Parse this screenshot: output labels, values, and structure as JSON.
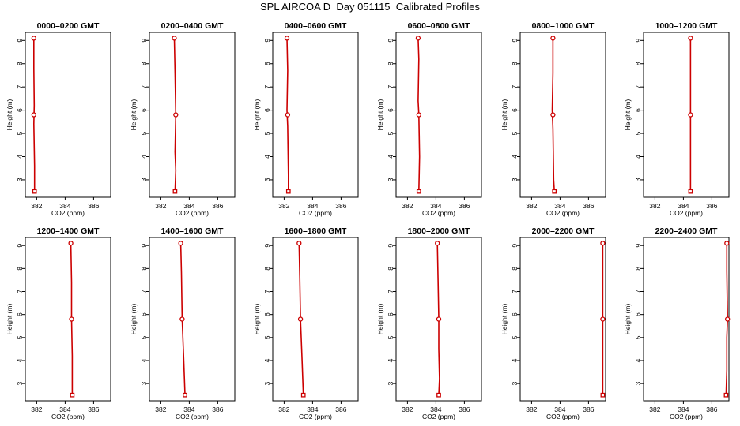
{
  "title": "SPL AIRCOA D  Day 051115  Calibrated Profiles",
  "series_color": "#cc0000",
  "chart_data": [
    {
      "type": "line",
      "title": "0000–0200 GMT",
      "xlabel": "CO2 (ppm)",
      "ylabel": "Height (m)",
      "xlim": [
        381.2,
        387.2
      ],
      "ylim": [
        2.25,
        9.35
      ],
      "xticks": [
        382,
        384,
        386
      ],
      "yticks": [
        3,
        4,
        5,
        6,
        7,
        8,
        9
      ],
      "grid": false,
      "x": [
        381.8,
        381.8,
        381.85
      ],
      "y": [
        9.1,
        5.8,
        2.5
      ],
      "trace": {
        "x": [
          381.8,
          381.8,
          381.83,
          381.8,
          381.85,
          381.85
        ],
        "y": [
          9.1,
          7.8,
          6.2,
          5.4,
          3.6,
          2.5
        ]
      }
    },
    {
      "type": "line",
      "title": "0200–0400 GMT",
      "xlabel": "CO2 (ppm)",
      "ylabel": "Height (m)",
      "xlim": [
        381.2,
        387.2
      ],
      "ylim": [
        2.25,
        9.35
      ],
      "xticks": [
        382,
        384,
        386
      ],
      "yticks": [
        3,
        4,
        5,
        6,
        7,
        8,
        9
      ],
      "grid": false,
      "x": [
        382.95,
        383.05,
        383.0
      ],
      "y": [
        9.1,
        5.8,
        2.5
      ],
      "trace": {
        "x": [
          382.95,
          383.0,
          383.05,
          383.0,
          383.05,
          383.0
        ],
        "y": [
          9.1,
          7.6,
          5.8,
          4.2,
          3.4,
          2.5
        ]
      }
    },
    {
      "type": "line",
      "title": "0400–0600 GMT",
      "xlabel": "CO2 (ppm)",
      "ylabel": "Height (m)",
      "xlim": [
        381.2,
        387.2
      ],
      "ylim": [
        2.25,
        9.35
      ],
      "xticks": [
        382,
        384,
        386
      ],
      "yticks": [
        3,
        4,
        5,
        6,
        7,
        8,
        9
      ],
      "grid": false,
      "x": [
        382.2,
        382.25,
        382.3
      ],
      "y": [
        9.1,
        5.8,
        2.5
      ],
      "trace": {
        "x": [
          382.2,
          382.25,
          382.2,
          382.25,
          382.3,
          382.3
        ],
        "y": [
          9.1,
          7.7,
          6.0,
          5.3,
          3.2,
          2.5
        ]
      }
    },
    {
      "type": "line",
      "title": "0600–0800 GMT",
      "xlabel": "CO2 (ppm)",
      "ylabel": "Height (m)",
      "xlim": [
        381.2,
        387.2
      ],
      "ylim": [
        2.25,
        9.35
      ],
      "xticks": [
        382,
        384,
        386
      ],
      "yticks": [
        3,
        4,
        5,
        6,
        7,
        8,
        9
      ],
      "grid": false,
      "x": [
        382.75,
        382.8,
        382.8
      ],
      "y": [
        9.1,
        5.8,
        2.5
      ],
      "trace": {
        "x": [
          382.75,
          382.8,
          382.75,
          382.8,
          382.85,
          382.8
        ],
        "y": [
          9.1,
          8.2,
          6.4,
          5.8,
          4.0,
          2.5
        ]
      }
    },
    {
      "type": "line",
      "title": "0800–1000 GMT",
      "xlabel": "CO2 (ppm)",
      "ylabel": "Height (m)",
      "xlim": [
        381.2,
        387.2
      ],
      "ylim": [
        2.25,
        9.35
      ],
      "xticks": [
        382,
        384,
        386
      ],
      "yticks": [
        3,
        4,
        5,
        6,
        7,
        8,
        9
      ],
      "grid": false,
      "x": [
        383.5,
        383.5,
        383.6
      ],
      "y": [
        9.1,
        5.8,
        2.5
      ],
      "trace": {
        "x": [
          383.5,
          383.5,
          383.45,
          383.5,
          383.55,
          383.6
        ],
        "y": [
          9.1,
          7.6,
          6.0,
          5.2,
          3.0,
          2.5
        ]
      }
    },
    {
      "type": "line",
      "title": "1000–1200 GMT",
      "xlabel": "CO2 (ppm)",
      "ylabel": "Height (m)",
      "xlim": [
        381.2,
        387.2
      ],
      "ylim": [
        2.25,
        9.35
      ],
      "xticks": [
        382,
        384,
        386
      ],
      "yticks": [
        3,
        4,
        5,
        6,
        7,
        8,
        9
      ],
      "grid": false,
      "x": [
        384.5,
        384.5,
        384.5
      ],
      "y": [
        9.1,
        5.8,
        2.5
      ],
      "trace": {
        "x": [
          384.5,
          384.5,
          384.5,
          384.5
        ],
        "y": [
          9.1,
          7.2,
          5.8,
          2.5
        ]
      }
    },
    {
      "type": "line",
      "title": "1200–1400 GMT",
      "xlabel": "CO2 (ppm)",
      "ylabel": "Height (m)",
      "xlim": [
        381.2,
        387.2
      ],
      "ylim": [
        2.25,
        9.35
      ],
      "xticks": [
        382,
        384,
        386
      ],
      "yticks": [
        3,
        4,
        5,
        6,
        7,
        8,
        9
      ],
      "grid": false,
      "x": [
        384.4,
        384.45,
        384.5
      ],
      "y": [
        9.1,
        5.8,
        2.5
      ],
      "trace": {
        "x": [
          384.4,
          384.45,
          384.45,
          384.5,
          384.5
        ],
        "y": [
          9.1,
          7.4,
          5.8,
          4.2,
          2.5
        ]
      }
    },
    {
      "type": "line",
      "title": "1400–1600 GMT",
      "xlabel": "CO2 (ppm)",
      "ylabel": "Height (m)",
      "xlim": [
        381.2,
        387.2
      ],
      "ylim": [
        2.25,
        9.35
      ],
      "xticks": [
        382,
        384,
        386
      ],
      "yticks": [
        3,
        4,
        5,
        6,
        7,
        8,
        9
      ],
      "grid": false,
      "x": [
        383.4,
        383.5,
        383.7
      ],
      "y": [
        9.1,
        5.8,
        2.5
      ],
      "trace": {
        "x": [
          383.4,
          383.45,
          383.5,
          383.6,
          383.7
        ],
        "y": [
          9.1,
          7.8,
          5.8,
          4.2,
          2.5
        ]
      }
    },
    {
      "type": "line",
      "title": "1600–1800 GMT",
      "xlabel": "CO2 (ppm)",
      "ylabel": "Height (m)",
      "xlim": [
        381.2,
        387.2
      ],
      "ylim": [
        2.25,
        9.35
      ],
      "xticks": [
        382,
        384,
        386
      ],
      "yticks": [
        3,
        4,
        5,
        6,
        7,
        8,
        9
      ],
      "grid": false,
      "x": [
        383.05,
        383.15,
        383.35
      ],
      "y": [
        9.1,
        5.8,
        2.5
      ],
      "trace": {
        "x": [
          383.05,
          383.1,
          383.15,
          383.25,
          383.35
        ],
        "y": [
          9.1,
          7.6,
          5.8,
          4.2,
          2.5
        ]
      }
    },
    {
      "type": "line",
      "title": "1800–2000 GMT",
      "xlabel": "CO2 (ppm)",
      "ylabel": "Height (m)",
      "xlim": [
        381.2,
        387.2
      ],
      "ylim": [
        2.25,
        9.35
      ],
      "xticks": [
        382,
        384,
        386
      ],
      "yticks": [
        3,
        4,
        5,
        6,
        7,
        8,
        9
      ],
      "grid": false,
      "x": [
        384.1,
        384.2,
        384.2
      ],
      "y": [
        9.1,
        5.8,
        2.5
      ],
      "trace": {
        "x": [
          384.1,
          384.15,
          384.2,
          384.2,
          384.25,
          384.2
        ],
        "y": [
          9.1,
          7.5,
          5.8,
          4.5,
          3.2,
          2.5
        ]
      }
    },
    {
      "type": "line",
      "title": "2000–2200 GMT",
      "xlabel": "CO2 (ppm)",
      "ylabel": "Height (m)",
      "xlim": [
        381.2,
        387.2
      ],
      "ylim": [
        2.25,
        9.35
      ],
      "xticks": [
        382,
        384,
        386
      ],
      "yticks": [
        3,
        4,
        5,
        6,
        7,
        8,
        9
      ],
      "grid": false,
      "x": [
        387.0,
        387.0,
        387.0
      ],
      "y": [
        9.1,
        5.8,
        2.5
      ],
      "trace": {
        "x": [
          387.0,
          387.0,
          387.0,
          387.0
        ],
        "y": [
          9.1,
          7.4,
          5.2,
          2.5
        ]
      }
    },
    {
      "type": "line",
      "title": "2200–2400 GMT",
      "xlabel": "CO2 (ppm)",
      "ylabel": "Height (m)",
      "xlim": [
        381.2,
        387.2
      ],
      "ylim": [
        2.25,
        9.35
      ],
      "xticks": [
        382,
        384,
        386
      ],
      "yticks": [
        3,
        4,
        5,
        6,
        7,
        8,
        9
      ],
      "grid": false,
      "x": [
        387.05,
        387.1,
        387.0
      ],
      "y": [
        9.1,
        5.8,
        2.5
      ],
      "trace": {
        "x": [
          387.05,
          387.05,
          387.1,
          387.05,
          387.05,
          387.0
        ],
        "y": [
          9.1,
          7.9,
          5.8,
          5.0,
          3.6,
          2.5
        ]
      }
    }
  ]
}
